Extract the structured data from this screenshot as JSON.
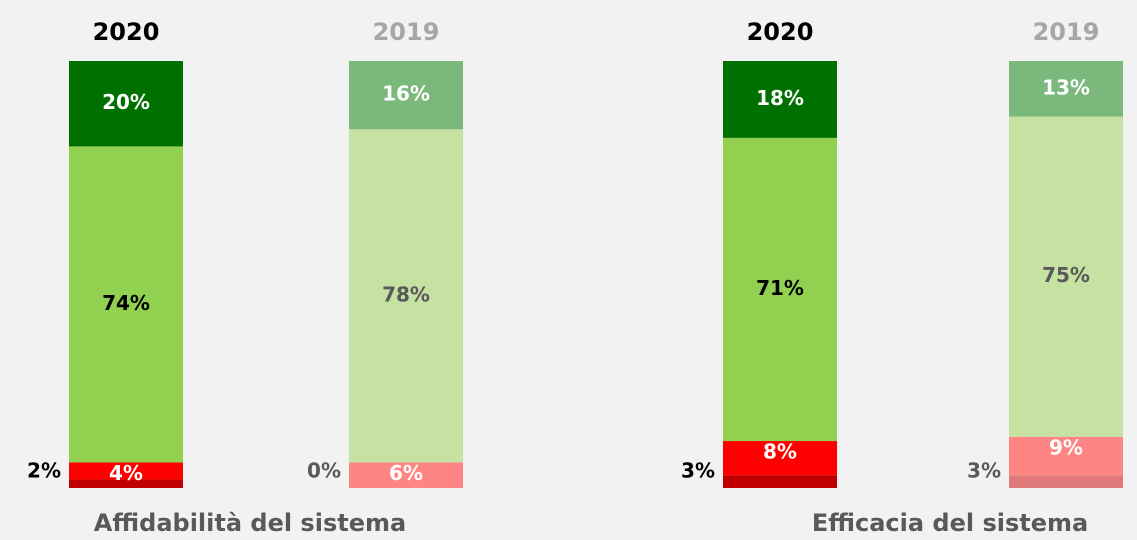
{
  "chart_data": [
    {
      "type": "bar",
      "stacked": true,
      "title": "Affidabilità del sistema",
      "categories": [
        "2020",
        "2019"
      ],
      "series": [
        {
          "colors": [
            "#c00000",
            "#e07a7a"
          ],
          "values": [
            2,
            0
          ],
          "value_labels": [
            "2%",
            "0%"
          ]
        },
        {
          "colors": [
            "#ff0000",
            "#ff8585"
          ],
          "values": [
            4,
            6
          ],
          "value_labels": [
            "4%",
            "6%"
          ]
        },
        {
          "colors": [
            "#92d050",
            "#c5e2a3"
          ],
          "values": [
            74,
            78
          ],
          "value_labels": [
            "74%",
            "78%"
          ]
        },
        {
          "colors": [
            "#007000",
            "#7bb87b"
          ],
          "values": [
            20,
            16
          ],
          "value_labels": [
            "20%",
            "16%"
          ]
        }
      ]
    },
    {
      "type": "bar",
      "stacked": true,
      "title": "Efficacia del sistema",
      "categories": [
        "2020",
        "2019"
      ],
      "series": [
        {
          "colors": [
            "#c00000",
            "#e07a7a"
          ],
          "values": [
            3,
            3
          ],
          "value_labels": [
            "3%",
            "3%"
          ]
        },
        {
          "colors": [
            "#ff0000",
            "#ff8585"
          ],
          "values": [
            8,
            9
          ],
          "value_labels": [
            "8%",
            "9%"
          ]
        },
        {
          "colors": [
            "#92d050",
            "#c5e2a3"
          ],
          "values": [
            71,
            75
          ],
          "value_labels": [
            "71%",
            "75%"
          ]
        },
        {
          "colors": [
            "#007000",
            "#7bb87b"
          ],
          "values": [
            18,
            13
          ],
          "value_labels": [
            "18%",
            "13%"
          ]
        }
      ]
    }
  ]
}
